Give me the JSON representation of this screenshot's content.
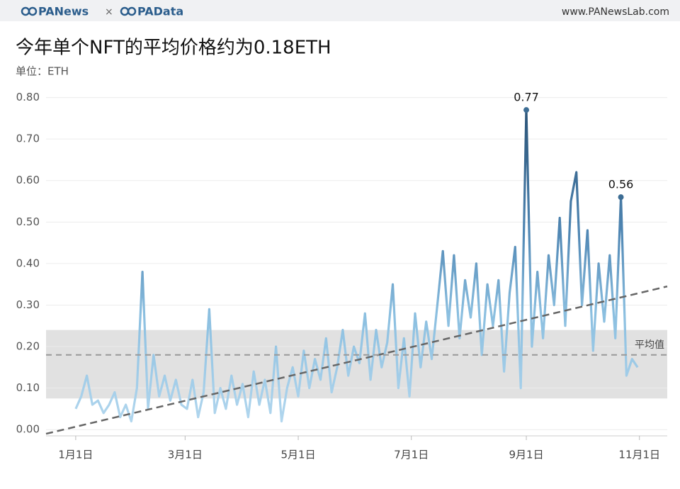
{
  "header": {
    "logo_left": "PANews",
    "separator": "×",
    "logo_right": "PAData",
    "url": "www.PANewsLab.com"
  },
  "chart_data": {
    "type": "line",
    "title": "今年单个NFT的平均价格约为0.18ETH",
    "subtitle": "单位：ETH",
    "x": [
      0,
      3,
      6,
      9,
      12,
      15,
      18,
      21,
      24,
      27,
      30,
      33,
      36,
      39,
      42,
      45,
      48,
      51,
      54,
      57,
      60,
      63,
      66,
      69,
      72,
      75,
      78,
      81,
      84,
      87,
      90,
      93,
      96,
      99,
      102,
      105,
      108,
      111,
      114,
      117,
      120,
      123,
      126,
      129,
      132,
      135,
      138,
      141,
      144,
      147,
      150,
      153,
      156,
      159,
      162,
      165,
      168,
      171,
      174,
      177,
      180,
      183,
      186,
      189,
      192,
      195,
      198,
      201,
      204,
      207,
      210,
      213,
      216,
      219,
      222,
      225,
      228,
      231,
      234,
      237,
      240,
      243,
      246,
      249,
      252,
      255,
      258,
      261,
      264,
      267,
      270,
      273,
      276,
      279,
      282,
      285,
      288,
      291,
      294,
      297,
      300,
      303
    ],
    "series": [
      {
        "color": "#3d6d94",
        "values": [
          0.05,
          0.08,
          0.13,
          0.06,
          0.07,
          0.04,
          0.06,
          0.09,
          0.03,
          0.06,
          0.02,
          0.1,
          0.38,
          0.05,
          0.18,
          0.08,
          0.13,
          0.07,
          0.12,
          0.06,
          0.05,
          0.12,
          0.03,
          0.09,
          0.29,
          0.04,
          0.1,
          0.05,
          0.13,
          0.06,
          0.11,
          0.03,
          0.14,
          0.06,
          0.12,
          0.04,
          0.2,
          0.02,
          0.1,
          0.15,
          0.08,
          0.19,
          0.1,
          0.17,
          0.12,
          0.22,
          0.09,
          0.15,
          0.24,
          0.13,
          0.2,
          0.16,
          0.28,
          0.12,
          0.24,
          0.15,
          0.21,
          0.35,
          0.1,
          0.22,
          0.08,
          0.28,
          0.15,
          0.26,
          0.17,
          0.3,
          0.43,
          0.25,
          0.42,
          0.22,
          0.36,
          0.27,
          0.4,
          0.18,
          0.35,
          0.25,
          0.36,
          0.14,
          0.33,
          0.44,
          0.1,
          0.77,
          0.2,
          0.38,
          0.22,
          0.42,
          0.3,
          0.51,
          0.25,
          0.55,
          0.62,
          0.3,
          0.48,
          0.19,
          0.4,
          0.26,
          0.42,
          0.22,
          0.56,
          0.13,
          0.17,
          0.15
        ]
      }
    ],
    "trend_line": {
      "x": [
        -16,
        319
      ],
      "values": [
        -0.01,
        0.345
      ]
    },
    "average": {
      "label": "平均值",
      "value": 0.18,
      "band": [
        0.075,
        0.24
      ]
    },
    "annotations": [
      {
        "label": "0.77",
        "x": 243,
        "y": 0.77
      },
      {
        "label": "0.56",
        "x": 294,
        "y": 0.56
      }
    ],
    "xlim": [
      -16,
      319
    ],
    "xticks": [
      {
        "value": 0,
        "label": "1月1日"
      },
      {
        "value": 59,
        "label": "3月1日"
      },
      {
        "value": 120,
        "label": "5月1日"
      },
      {
        "value": 181,
        "label": "7月1日"
      },
      {
        "value": 243,
        "label": "9月1日"
      },
      {
        "value": 304,
        "label": "11月1日"
      }
    ],
    "ylim": [
      -0.015,
      0.83
    ],
    "yticks": [
      {
        "value": 0,
        "label": "0.00"
      },
      {
        "value": 0.1,
        "label": "0.10"
      },
      {
        "value": 0.2,
        "label": "0.20"
      },
      {
        "value": 0.3,
        "label": "0.30"
      },
      {
        "value": 0.4,
        "label": "0.40"
      },
      {
        "value": 0.5,
        "label": "0.50"
      },
      {
        "value": 0.6,
        "label": "0.60"
      },
      {
        "value": 0.7,
        "label": "0.70"
      },
      {
        "value": 0.8,
        "label": "0.80"
      }
    ],
    "grid": true
  }
}
